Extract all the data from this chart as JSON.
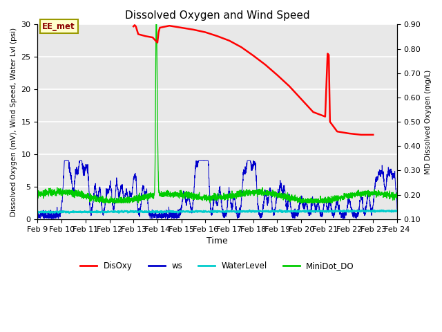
{
  "title": "Dissolved Oxygen and Wind Speed",
  "ylabel_left": "Dissolved Oxygen (mV), Wind Speed, Water Lvl (psi)",
  "ylabel_right": "MD Dissolved Oxygen (mg/L)",
  "xlabel": "Time",
  "ylim_left": [
    0,
    30
  ],
  "ylim_right": [
    0.1,
    0.9
  ],
  "annotation_text": "EE_met",
  "bg_color": "#e8e8e8",
  "colors": {
    "DisOxy": "#ff0000",
    "ws": "#0000cc",
    "WaterLevel": "#00cccc",
    "MiniDot_DO": "#00cc00"
  },
  "x_tick_labels": [
    "Feb 9",
    "Feb 10",
    "Feb 11",
    "Feb 12",
    "Feb 13",
    "Feb 14",
    "Feb 15",
    "Feb 16",
    "Feb 17",
    "Feb 18",
    "Feb 19",
    "Feb 20",
    "Feb 21",
    "Feb 22",
    "Feb 23",
    "Feb 24"
  ],
  "x_tick_positions": [
    0,
    1,
    2,
    3,
    4,
    5,
    6,
    7,
    8,
    9,
    10,
    11,
    12,
    13,
    14,
    15
  ],
  "WaterLevel_flat": 1.1,
  "disoxy_x": [
    4.0,
    4.05,
    4.1,
    4.2,
    4.5,
    4.8,
    5.0,
    5.05,
    5.1,
    5.5,
    6.0,
    6.5,
    7.0,
    7.5,
    8.0,
    8.5,
    9.0,
    9.5,
    10.0,
    10.5,
    11.0,
    11.5,
    12.0,
    12.1,
    12.15,
    12.2,
    12.5,
    13.0,
    13.5,
    14.0
  ],
  "disoxy_y": [
    29.7,
    29.9,
    29.7,
    28.5,
    28.2,
    28.0,
    27.2,
    28.8,
    29.5,
    29.8,
    29.5,
    29.2,
    28.8,
    28.2,
    27.5,
    26.5,
    25.2,
    23.8,
    22.2,
    20.5,
    18.5,
    16.5,
    15.8,
    25.5,
    25.3,
    15.0,
    13.5,
    13.2,
    13.0,
    13.0
  ]
}
